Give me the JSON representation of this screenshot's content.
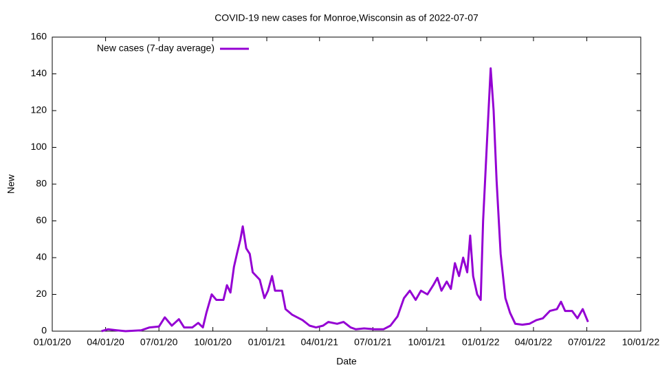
{
  "chart_data": {
    "type": "line",
    "title": "COVID-19 new cases for Monroe,Wisconsin as of 2022-07-07",
    "x_label": "Date",
    "y_label": "New",
    "x": [
      "2020-03-25",
      "2020-04-05",
      "2020-04-20",
      "2020-05-05",
      "2020-06-01",
      "2020-06-15",
      "2020-07-01",
      "2020-07-11",
      "2020-07-23",
      "2020-08-04",
      "2020-08-13",
      "2020-08-27",
      "2020-09-06",
      "2020-09-14",
      "2020-09-20",
      "2020-09-29",
      "2020-10-07",
      "2020-10-19",
      "2020-10-25",
      "2020-10-31",
      "2020-11-06",
      "2020-11-11",
      "2020-11-17",
      "2020-11-21",
      "2020-11-27",
      "2020-12-03",
      "2020-12-08",
      "2020-12-20",
      "2020-12-28",
      "2021-01-03",
      "2021-01-10",
      "2021-01-15",
      "2021-01-27",
      "2021-02-02",
      "2021-02-13",
      "2021-03-03",
      "2021-03-15",
      "2021-03-26",
      "2021-04-07",
      "2021-04-16",
      "2021-05-01",
      "2021-05-12",
      "2021-05-24",
      "2021-06-02",
      "2021-06-16",
      "2021-07-04",
      "2021-07-19",
      "2021-07-31",
      "2021-08-12",
      "2021-08-23",
      "2021-09-02",
      "2021-09-12",
      "2021-09-21",
      "2021-10-02",
      "2021-10-12",
      "2021-10-19",
      "2021-10-26",
      "2021-11-04",
      "2021-11-11",
      "2021-11-18",
      "2021-11-25",
      "2021-12-02",
      "2021-12-09",
      "2021-12-14",
      "2021-12-19",
      "2021-12-26",
      "2022-01-01",
      "2022-01-05",
      "2022-01-12",
      "2022-01-18",
      "2022-01-23",
      "2022-01-28",
      "2022-02-04",
      "2022-02-12",
      "2022-02-20",
      "2022-03-01",
      "2022-03-13",
      "2022-03-25",
      "2022-04-06",
      "2022-04-17",
      "2022-04-29",
      "2022-05-11",
      "2022-05-18",
      "2022-05-25",
      "2022-06-06",
      "2022-06-15",
      "2022-06-24",
      "2022-07-03"
    ],
    "series": [
      {
        "name": "New cases (7-day average)",
        "color": "#9400d3",
        "values": [
          0,
          1,
          0.5,
          0,
          0.5,
          2,
          2.5,
          7.5,
          3,
          6.5,
          2,
          2,
          4.5,
          2,
          10,
          20,
          17,
          17,
          25,
          21,
          35,
          42,
          50,
          57,
          45,
          42,
          32,
          28,
          18,
          22,
          30,
          22,
          22,
          12,
          9,
          6,
          3,
          2,
          3,
          5,
          4,
          5,
          2,
          1,
          1.5,
          1,
          1,
          3,
          8,
          18,
          22,
          17,
          22,
          20,
          25,
          29,
          22,
          27,
          23,
          37,
          30,
          40,
          32,
          52,
          30,
          20,
          17,
          60,
          105,
          143,
          120,
          82,
          42,
          18,
          10,
          4,
          3.5,
          4,
          6,
          7,
          11,
          12,
          16,
          11,
          11,
          7,
          12,
          5
        ]
      }
    ],
    "xlim": [
      "2020-01-01",
      "2022-10-01"
    ],
    "xticks": [
      {
        "value": "2020-01-01",
        "label": "01/01/20"
      },
      {
        "value": "2020-04-01",
        "label": "04/01/20"
      },
      {
        "value": "2020-07-01",
        "label": "07/01/20"
      },
      {
        "value": "2020-10-01",
        "label": "10/01/20"
      },
      {
        "value": "2021-01-01",
        "label": "01/01/21"
      },
      {
        "value": "2021-04-01",
        "label": "04/01/21"
      },
      {
        "value": "2021-07-01",
        "label": "07/01/21"
      },
      {
        "value": "2021-10-01",
        "label": "10/01/21"
      },
      {
        "value": "2022-01-01",
        "label": "01/01/22"
      },
      {
        "value": "2022-04-01",
        "label": "04/01/22"
      },
      {
        "value": "2022-07-01",
        "label": "07/01/22"
      },
      {
        "value": "2022-10-01",
        "label": "10/01/22"
      }
    ],
    "ylim": [
      0,
      160
    ],
    "yticks": [
      0,
      20,
      40,
      60,
      80,
      100,
      120,
      140,
      160
    ],
    "legend": "top-left"
  }
}
